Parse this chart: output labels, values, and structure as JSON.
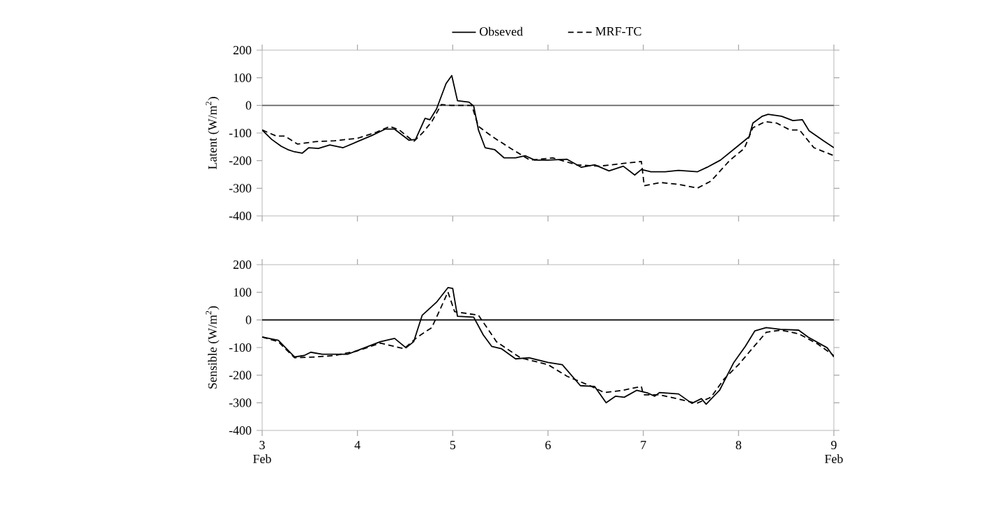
{
  "chart_data": [
    {
      "type": "line",
      "ylabel": "Latent (W/m$^{2}$)",
      "xlim": [
        3,
        9
      ],
      "ylim": [
        -400,
        200
      ],
      "xticks": [
        {
          "value": 3,
          "label": null
        },
        {
          "value": 4,
          "label": null
        },
        {
          "value": 5,
          "label": null
        },
        {
          "value": 6,
          "label": null
        },
        {
          "value": 7,
          "label": null
        },
        {
          "value": 8,
          "label": null
        },
        {
          "value": 9,
          "label": null
        }
      ],
      "yticks": [
        -400,
        -300,
        -200,
        -100,
        0,
        100,
        200
      ],
      "tick_labels": "y",
      "legend": "top",
      "grid": false,
      "marker": "none",
      "ref_lines": [
        {
          "axis": "y",
          "value": 0,
          "color": "#606060"
        }
      ],
      "series": [
        {
          "name": "Obseved",
          "color": "#000000",
          "line_style": "solid",
          "x": [
            3.0,
            3.1,
            3.2,
            3.27,
            3.34,
            3.42,
            3.49,
            3.59,
            3.71,
            3.85,
            4.0,
            4.15,
            4.29,
            4.39,
            4.54,
            4.61,
            4.71,
            4.76,
            4.83,
            4.93,
            4.99,
            5.05,
            5.17,
            5.22,
            5.27,
            5.34,
            5.44,
            5.54,
            5.66,
            5.76,
            5.86,
            6.0,
            6.2,
            6.35,
            6.49,
            6.64,
            6.79,
            6.91,
            6.98,
            7.08,
            7.23,
            7.37,
            7.57,
            7.67,
            7.81,
            7.96,
            8.11,
            8.15,
            8.25,
            8.31,
            8.45,
            8.57,
            8.67,
            8.74,
            8.89,
            9.0
          ],
          "values": [
            -89,
            -123,
            -148,
            -160,
            -168,
            -173,
            -153,
            -156,
            -143,
            -153,
            -131,
            -109,
            -86,
            -86,
            -126,
            -123,
            -47,
            -52,
            -13,
            79,
            108,
            17,
            12,
            -2,
            -89,
            -153,
            -160,
            -190,
            -190,
            -182,
            -198,
            -198,
            -195,
            -224,
            -215,
            -237,
            -220,
            -252,
            -232,
            -240,
            -240,
            -235,
            -240,
            -224,
            -198,
            -156,
            -114,
            -64,
            -39,
            -32,
            -39,
            -55,
            -52,
            -92,
            -128,
            -153
          ]
        },
        {
          "name": "MRF-TC",
          "color": "#000000",
          "line_style": "dashed",
          "x": [
            3.0,
            3.15,
            3.24,
            3.37,
            3.56,
            3.76,
            4.0,
            4.2,
            4.34,
            4.44,
            4.59,
            4.69,
            4.78,
            4.88,
            4.98,
            5.2,
            5.27,
            5.42,
            5.61,
            5.81,
            6.05,
            6.3,
            6.54,
            6.79,
            6.98,
            7.01,
            7.18,
            7.37,
            7.57,
            7.71,
            7.91,
            8.06,
            8.15,
            8.28,
            8.4,
            8.54,
            8.64,
            8.79,
            9.0
          ],
          "values": [
            -89,
            -111,
            -111,
            -140,
            -131,
            -128,
            -119,
            -97,
            -76,
            -89,
            -131,
            -97,
            -59,
            3,
            0,
            0,
            -76,
            -114,
            -156,
            -198,
            -190,
            -215,
            -220,
            -210,
            -203,
            -291,
            -279,
            -286,
            -299,
            -274,
            -198,
            -156,
            -81,
            -59,
            -64,
            -89,
            -89,
            -153,
            -182
          ]
        }
      ]
    },
    {
      "type": "line",
      "ylabel": "Sensible (W/m$^{2}$)",
      "xlim": [
        3,
        9
      ],
      "ylim": [
        -400,
        200
      ],
      "xticks": [
        {
          "value": 3,
          "label": "3 Feb"
        },
        4,
        5,
        6,
        7,
        8,
        {
          "value": 9,
          "label": "9 Feb"
        }
      ],
      "yticks": [
        -400,
        -300,
        -200,
        -100,
        0,
        100,
        200
      ],
      "grid": false,
      "marker": "none",
      "ref_lines": [
        {
          "axis": "y",
          "value": 0,
          "color": "#000000"
        }
      ],
      "series": [
        {
          "color": "#000000",
          "line_style": "solid",
          "x": [
            3.0,
            3.17,
            3.34,
            3.44,
            3.51,
            3.63,
            3.76,
            3.9,
            4.05,
            4.24,
            4.39,
            4.51,
            4.59,
            4.68,
            4.83,
            4.95,
            5.0,
            5.05,
            5.22,
            5.32,
            5.41,
            5.51,
            5.66,
            5.8,
            6.0,
            6.15,
            6.34,
            6.49,
            6.61,
            6.71,
            6.8,
            6.93,
            7.05,
            7.12,
            7.17,
            7.37,
            7.51,
            7.61,
            7.66,
            7.8,
            7.95,
            8.07,
            8.17,
            8.29,
            8.44,
            8.63,
            8.73,
            8.93,
            9.0
          ],
          "values": [
            -62,
            -74,
            -134,
            -129,
            -117,
            -124,
            -124,
            -124,
            -104,
            -79,
            -67,
            -101,
            -79,
            17,
            64,
            117,
            114,
            13,
            10,
            -54,
            -96,
            -104,
            -141,
            -137,
            -154,
            -162,
            -238,
            -241,
            -300,
            -276,
            -280,
            -255,
            -265,
            -276,
            -263,
            -268,
            -302,
            -285,
            -305,
            -255,
            -154,
            -96,
            -40,
            -28,
            -34,
            -37,
            -62,
            -101,
            -134
          ]
        },
        {
          "color": "#000000",
          "line_style": "dashed",
          "x": [
            3.0,
            3.17,
            3.34,
            3.56,
            3.76,
            4.0,
            4.24,
            4.49,
            4.63,
            4.78,
            4.95,
            5.02,
            5.27,
            5.46,
            5.71,
            6.0,
            6.2,
            6.44,
            6.59,
            6.78,
            6.98,
            7.0,
            7.17,
            7.39,
            7.56,
            7.71,
            7.85,
            8.0,
            8.15,
            8.29,
            8.44,
            8.63,
            8.83,
            9.0
          ],
          "values": [
            -62,
            -79,
            -137,
            -134,
            -129,
            -112,
            -84,
            -104,
            -62,
            -28,
            101,
            30,
            17,
            -79,
            -137,
            -162,
            -204,
            -238,
            -263,
            -255,
            -241,
            -271,
            -271,
            -288,
            -302,
            -280,
            -213,
            -162,
            -101,
            -45,
            -37,
            -50,
            -87,
            -129
          ]
        }
      ]
    }
  ]
}
